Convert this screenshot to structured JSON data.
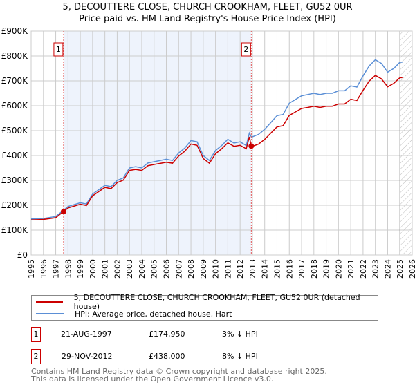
{
  "title_line1": "5, DECOUTTERE CLOSE, CHURCH CROOKHAM, FLEET, GU52 0UR",
  "title_line2": "Price paid vs. HM Land Registry's House Price Index (HPI)",
  "chart_data": {
    "type": "line",
    "xlim": [
      1995,
      2026
    ],
    "ylim": [
      0,
      900000
    ],
    "yticks": [
      {
        "v": 0,
        "label": "£0"
      },
      {
        "v": 100000,
        "label": "£100K"
      },
      {
        "v": 200000,
        "label": "£200K"
      },
      {
        "v": 300000,
        "label": "£300K"
      },
      {
        "v": 400000,
        "label": "£400K"
      },
      {
        "v": 500000,
        "label": "£500K"
      },
      {
        "v": 600000,
        "label": "£600K"
      },
      {
        "v": 700000,
        "label": "£700K"
      },
      {
        "v": 800000,
        "label": "£800K"
      },
      {
        "v": 900000,
        "label": "£900K"
      }
    ],
    "xticks": [
      "1995",
      "1996",
      "1997",
      "1998",
      "1999",
      "2000",
      "2001",
      "2002",
      "2003",
      "2004",
      "2005",
      "2006",
      "2007",
      "2008",
      "2009",
      "2010",
      "2011",
      "2012",
      "2013",
      "2014",
      "2015",
      "2016",
      "2017",
      "2018",
      "2019",
      "2020",
      "2021",
      "2022",
      "2023",
      "2024",
      "2025",
      "2026"
    ],
    "shaded_range": [
      1997.64,
      2012.91
    ],
    "hatch_from": 2025.0,
    "colors": {
      "property": "#cc0000",
      "hpi": "#5b8fd6",
      "shade": "#eef3fc"
    },
    "series": [
      {
        "name": "5, DECOUTTERE CLOSE, CHURCH CROOKHAM, FLEET, GU52 0UR (detached house)",
        "color": "#cc0000",
        "x": [
          1995,
          1996,
          1997,
          1997.64,
          1998,
          1999,
          1999.5,
          2000,
          2001,
          2001.5,
          2002,
          2002.5,
          2003,
          2003.5,
          2004,
          2004.5,
          2005,
          2006,
          2006.5,
          2007,
          2007.5,
          2008,
          2008.5,
          2009,
          2009.5,
          2010,
          2010.5,
          2011,
          2011.5,
          2012,
          2012.5,
          2012.75,
          2012.91,
          2013,
          2013.5,
          2014,
          2015,
          2015.5,
          2016,
          2016.5,
          2017,
          2017.5,
          2018,
          2018.5,
          2019,
          2019.5,
          2020,
          2020.5,
          2021,
          2021.5,
          2022,
          2022.5,
          2023,
          2023.5,
          2024,
          2024.5,
          2025,
          2025.2
        ],
        "y": [
          141000,
          143000,
          150000,
          174950,
          189000,
          204000,
          199000,
          238000,
          272000,
          267000,
          291000,
          301000,
          340000,
          344000,
          340000,
          359000,
          364000,
          373000,
          369000,
          398000,
          417000,
          446000,
          441000,
          388000,
          369000,
          407000,
          427000,
          451000,
          437000,
          441000,
          427000,
          475000,
          438000,
          437000,
          446000,
          465000,
          515000,
          520000,
          561000,
          575000,
          589000,
          593000,
          598000,
          593000,
          598000,
          598000,
          607000,
          607000,
          626000,
          621000,
          662000,
          699000,
          722000,
          708000,
          676000,
          690000,
          713000,
          713000
        ]
      },
      {
        "name": "HPI: Average price, detached house, Hart",
        "color": "#5b8fd6",
        "x": [
          1995,
          1996,
          1997,
          1997.64,
          1998,
          1999,
          1999.5,
          2000,
          2001,
          2001.5,
          2002,
          2002.5,
          2003,
          2003.5,
          2004,
          2004.5,
          2005,
          2006,
          2006.5,
          2007,
          2007.5,
          2008,
          2008.5,
          2009,
          2009.5,
          2010,
          2010.5,
          2011,
          2011.5,
          2012,
          2012.5,
          2012.75,
          2012.91,
          2013,
          2013.5,
          2014,
          2015,
          2015.5,
          2016,
          2016.5,
          2017,
          2017.5,
          2018,
          2018.5,
          2019,
          2019.5,
          2020,
          2020.5,
          2021,
          2021.5,
          2022,
          2022.5,
          2023,
          2023.5,
          2024,
          2024.5,
          2025,
          2025.2
        ],
        "y": [
          145000,
          147000,
          155000,
          180000,
          195000,
          210000,
          205000,
          245000,
          280000,
          275000,
          300000,
          310000,
          350000,
          355000,
          350000,
          370000,
          375000,
          385000,
          380000,
          410000,
          430000,
          460000,
          455000,
          400000,
          380000,
          420000,
          440000,
          465000,
          450000,
          455000,
          440000,
          490000,
          475000,
          475000,
          485000,
          505000,
          560000,
          565000,
          610000,
          625000,
          640000,
          645000,
          650000,
          645000,
          650000,
          650000,
          660000,
          660000,
          680000,
          675000,
          720000,
          760000,
          785000,
          770000,
          735000,
          750000,
          775000,
          775000
        ]
      }
    ],
    "sales": [
      {
        "label": "1",
        "x": 1997.64,
        "y": 174950
      },
      {
        "label": "2",
        "x": 2012.91,
        "y": 438000
      }
    ]
  },
  "legend": {
    "property": "5, DECOUTTERE CLOSE, CHURCH CROOKHAM, FLEET, GU52 0UR (detached house)",
    "hpi": "HPI: Average price, detached house, Hart"
  },
  "table": [
    {
      "num": "1",
      "date": "21-AUG-1997",
      "price": "£174,950",
      "delta": "3% ↓ HPI"
    },
    {
      "num": "2",
      "date": "29-NOV-2012",
      "price": "£438,000",
      "delta": "8% ↓ HPI"
    }
  ],
  "footer": {
    "line1": "Contains HM Land Registry data © Crown copyright and database right 2025.",
    "line2": "This data is licensed under the Open Government Licence v3.0."
  }
}
